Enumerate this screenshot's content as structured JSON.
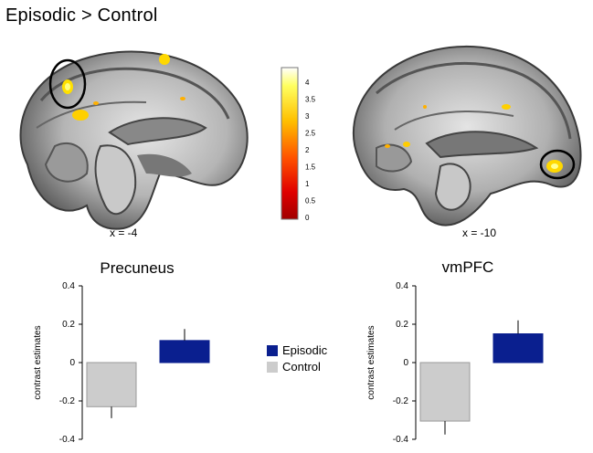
{
  "figure": {
    "title": "Episodic > Control",
    "left_slice_label": "x = -4",
    "right_slice_label": "x = -10"
  },
  "colorbar": {
    "ticks": [
      "4",
      "3.5",
      "3",
      "2.5",
      "2",
      "1.5",
      "1",
      "0.5",
      "0"
    ],
    "colors": [
      "#ffffff",
      "#ffff40",
      "#ffc000",
      "#ff6000",
      "#e00000",
      "#a00000"
    ]
  },
  "legend": {
    "items": [
      {
        "label": "Episodic",
        "color": "#0a1f8f"
      },
      {
        "label": "Control",
        "color": "#cccccc"
      }
    ]
  },
  "chart_data": [
    {
      "type": "bar",
      "title": "Precuneus",
      "ylabel": "contrast estimates",
      "ylim": [
        -0.4,
        0.4
      ],
      "yticks": [
        "0.4",
        "0.2",
        "0",
        "-0.2",
        "-0.4"
      ],
      "series": [
        {
          "name": "Control",
          "value": -0.23,
          "error": 0.06,
          "color": "#cccccc"
        },
        {
          "name": "Episodic",
          "value": 0.115,
          "error": 0.06,
          "color": "#0a1f8f"
        }
      ]
    },
    {
      "type": "bar",
      "title": "vmPFC",
      "ylabel": "contrast estimates",
      "ylim": [
        -0.4,
        0.4
      ],
      "yticks": [
        "0.4",
        "0.2",
        "0",
        "-0.2",
        "-0.4"
      ],
      "series": [
        {
          "name": "Control",
          "value": -0.305,
          "error": 0.07,
          "color": "#cccccc"
        },
        {
          "name": "Episodic",
          "value": 0.15,
          "error": 0.07,
          "color": "#0a1f8f"
        }
      ]
    }
  ]
}
